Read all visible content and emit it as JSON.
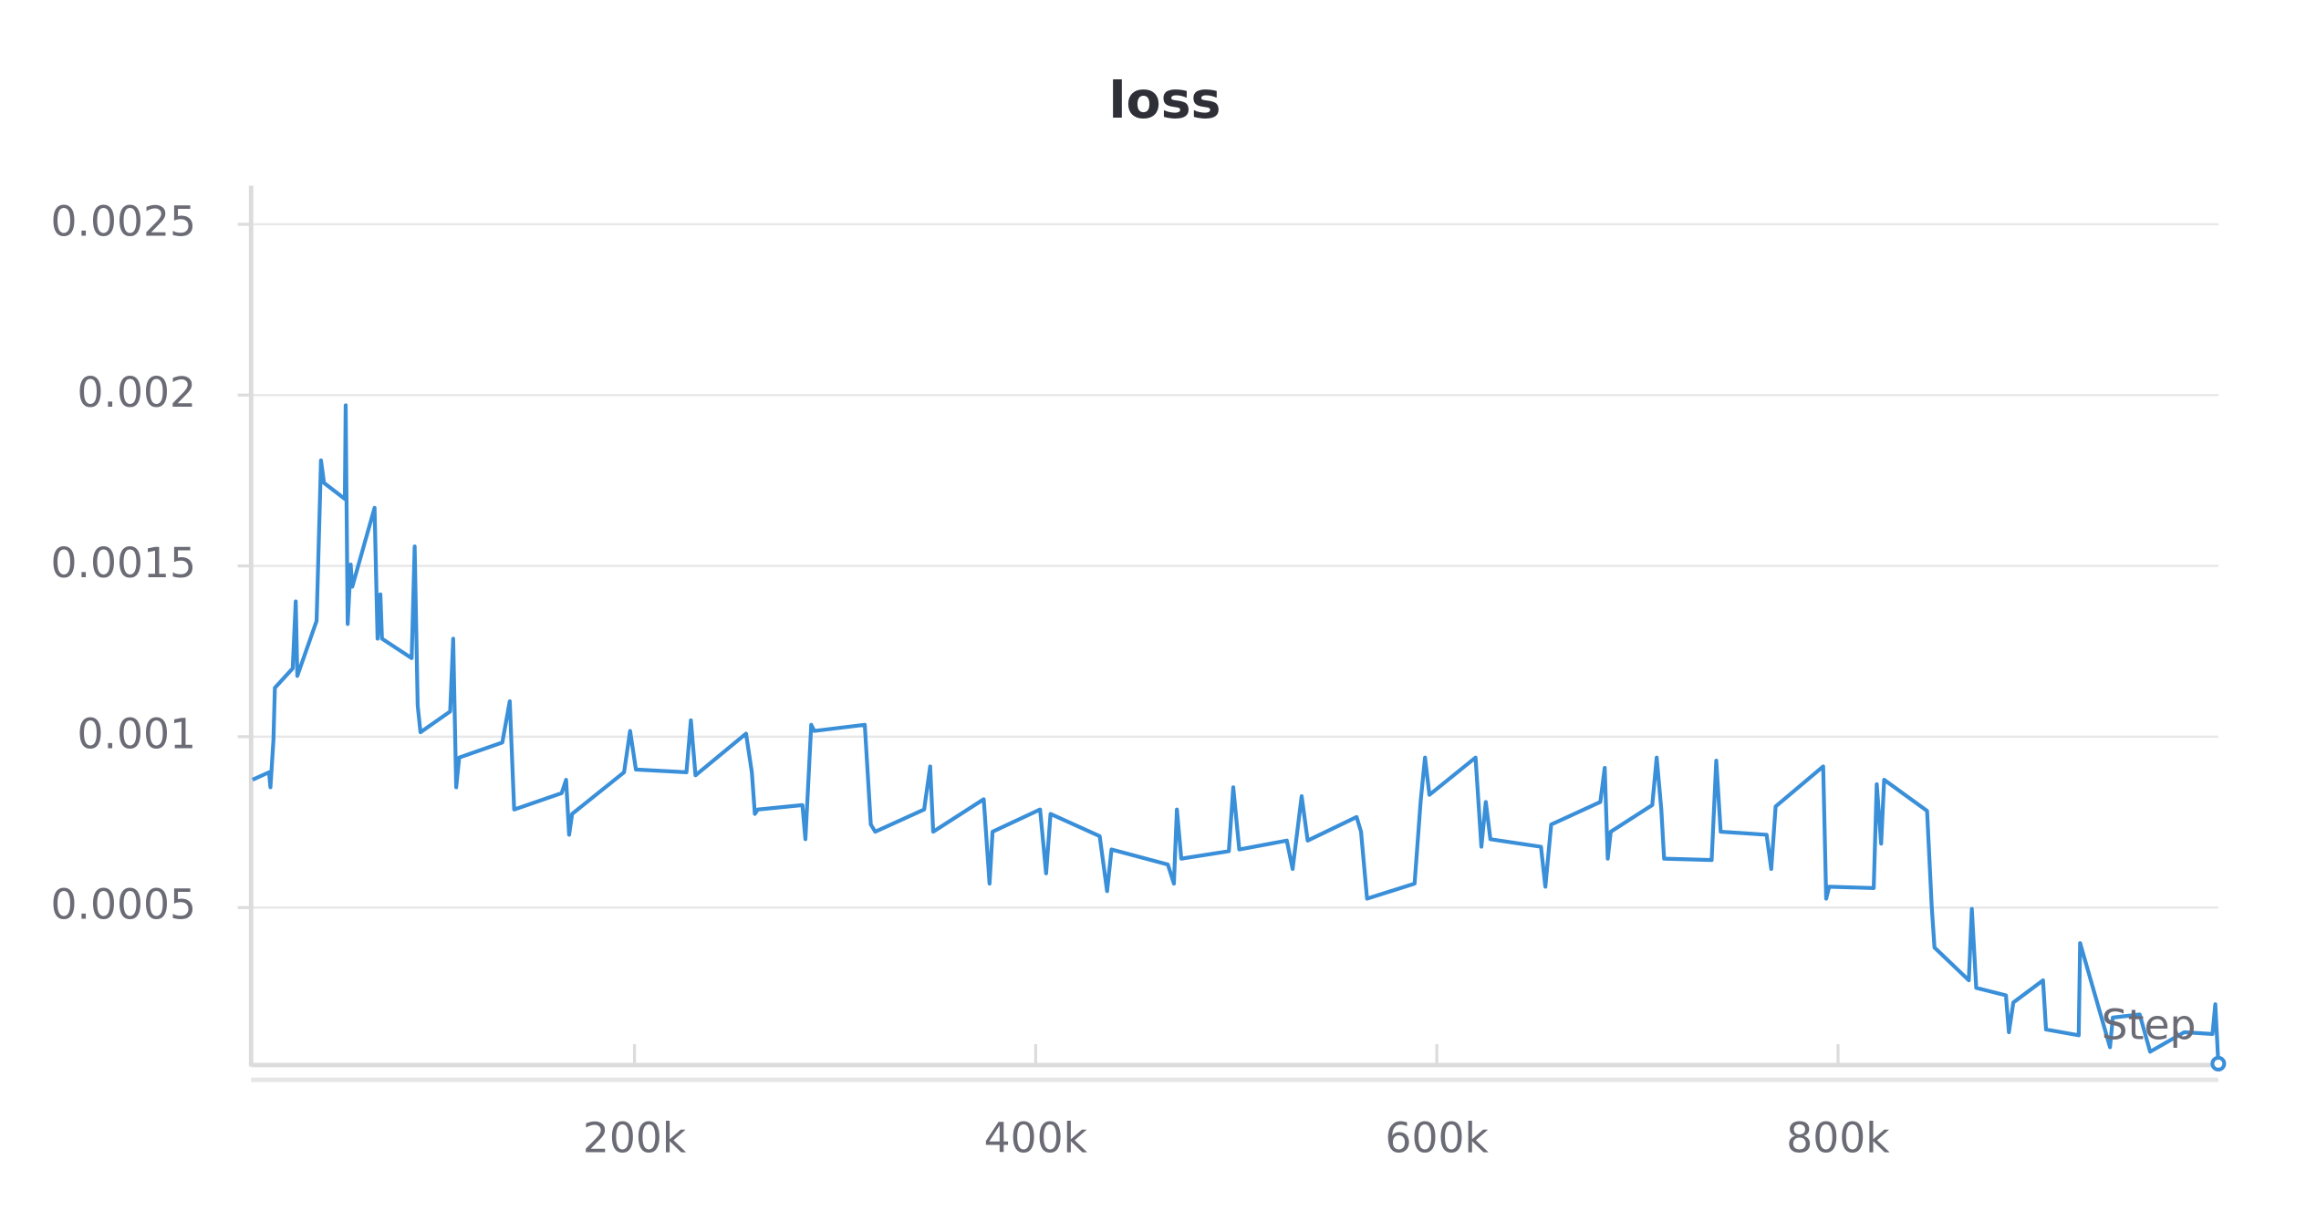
{
  "chart_data": {
    "type": "line",
    "title": "loss",
    "x_label": "Step",
    "xlim": [
      9600,
      989600
    ],
    "ylim": [
      4e-05,
      0.00261
    ],
    "xticks": [
      {
        "value": 200000,
        "label": "200k"
      },
      {
        "value": 400000,
        "label": "400k"
      },
      {
        "value": 600000,
        "label": "600k"
      },
      {
        "value": 800000,
        "label": "800k"
      }
    ],
    "yticks": [
      0.0005,
      0.001,
      0.0015,
      0.002,
      0.0025
    ],
    "grid": true,
    "series": [
      {
        "name": "loss",
        "color": "#3a8fd9",
        "x": [
          9600,
          17800,
          18500,
          20000,
          20700,
          29600,
          31100,
          31900,
          41500,
          43000,
          43700,
          45200,
          55600,
          56000,
          57000,
          58500,
          59300,
          70400,
          71900,
          73300,
          74100,
          88900,
          90400,
          91900,
          93300,
          108100,
          109600,
          111100,
          112600,
          134100,
          137800,
          140000,
          163700,
          165900,
          167400,
          168900,
          194800,
          197800,
          200700,
          225900,
          228100,
          230400,
          255600,
          258500,
          260000,
          261500,
          283700,
          285200,
          288100,
          289600,
          314800,
          317800,
          320000,
          344400,
          347400,
          348900,
          374100,
          377000,
          378500,
          402200,
          405200,
          407400,
          431900,
          435600,
          437800,
          465900,
          468900,
          470400,
          472600,
          496300,
          498500,
          501500,
          525200,
          528100,
          532600,
          535600,
          560000,
          562200,
          565200,
          588900,
          591900,
          594100,
          596300,
          619300,
          622200,
          624400,
          626700,
          651900,
          654100,
          657000,
          681500,
          683700,
          685200,
          686700,
          707400,
          709600,
          711900,
          713300,
          737000,
          739300,
          741500,
          764400,
          766700,
          768900,
          792600,
          794100,
          795600,
          817800,
          819300,
          821500,
          823000,
          844400,
          846700,
          848100,
          865200,
          866700,
          868900,
          883700,
          885200,
          887400,
          902200,
          903700,
          920000,
          920700,
          935600,
          937000,
          950400,
          955600,
          972600,
          986700,
          988100,
          989600
        ],
        "values": [
          0.000874,
          0.000896,
          0.000852,
          0.000991,
          0.001143,
          0.0012,
          0.001396,
          0.001178,
          0.001339,
          0.001657,
          0.001809,
          0.001743,
          0.001696,
          0.00197,
          0.00133,
          0.001504,
          0.001439,
          0.00167,
          0.001287,
          0.001417,
          0.001287,
          0.00123,
          0.001557,
          0.001091,
          0.001013,
          0.001074,
          0.001287,
          0.000852,
          0.000939,
          0.000983,
          0.001104,
          0.000787,
          0.000835,
          0.000874,
          0.000713,
          0.000774,
          0.000896,
          0.001017,
          0.000904,
          0.000896,
          0.001048,
          0.000887,
          0.001009,
          0.000896,
          0.000774,
          0.000787,
          0.0008,
          0.0007,
          0.001035,
          0.001017,
          0.001035,
          0.000743,
          0.000722,
          0.000787,
          0.000913,
          0.000722,
          0.000817,
          0.00057,
          0.000722,
          0.000787,
          0.0006,
          0.000774,
          0.000709,
          0.000548,
          0.00067,
          0.000626,
          0.00057,
          0.000787,
          0.000643,
          0.000665,
          0.000852,
          0.00067,
          0.000696,
          0.000613,
          0.000826,
          0.000696,
          0.000765,
          0.000722,
          0.000526,
          0.00057,
          0.000809,
          0.000939,
          0.00083,
          0.000939,
          0.000678,
          0.000809,
          0.0007,
          0.000678,
          0.000561,
          0.000743,
          0.000809,
          0.000909,
          0.000643,
          0.000722,
          0.0008,
          0.000939,
          0.000787,
          0.000643,
          0.000639,
          0.00093,
          0.000722,
          0.000713,
          0.000613,
          0.000796,
          0.000913,
          0.000526,
          0.000561,
          0.000557,
          0.000861,
          0.000687,
          0.000874,
          0.000783,
          0.000504,
          0.000383,
          0.000287,
          0.000496,
          0.000265,
          0.000243,
          0.000135,
          0.000222,
          0.000287,
          0.000143,
          0.000126,
          0.000396,
          9.1e-05,
          0.000178,
          0.000187,
          7.8e-05,
          0.000135,
          0.00013,
          0.000217,
          4.3e-05
        ]
      }
    ]
  }
}
